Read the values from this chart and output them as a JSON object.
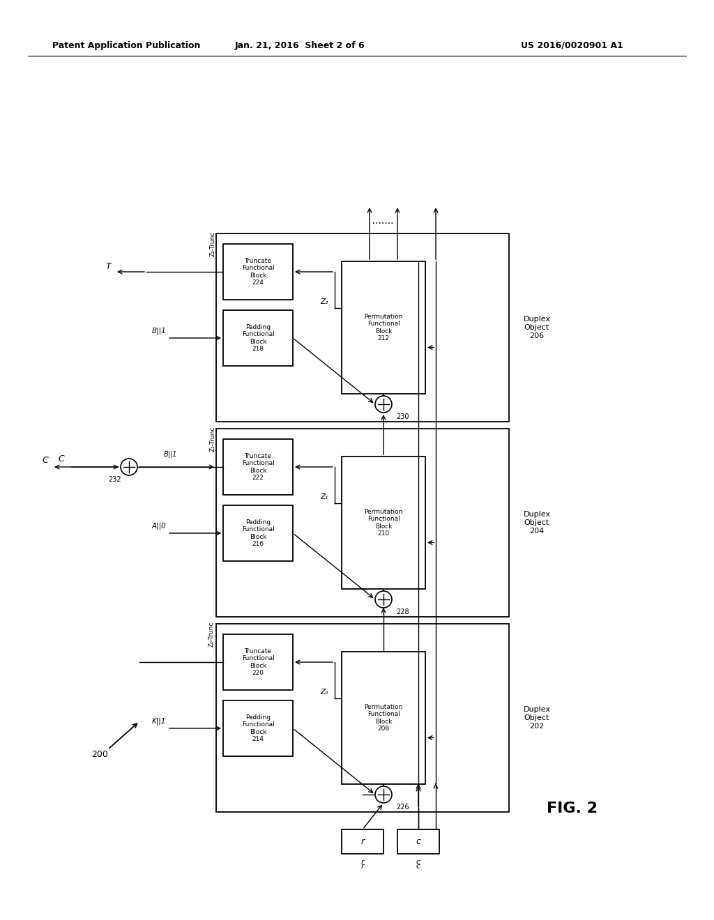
{
  "bg_color": "#ffffff",
  "header_left": "Patent Application Publication",
  "header_mid": "Jan. 21, 2016  Sheet 2 of 6",
  "header_right": "US 2016/0020901 A1",
  "fig_label": "FIG. 2",
  "diagram_ref": "200"
}
